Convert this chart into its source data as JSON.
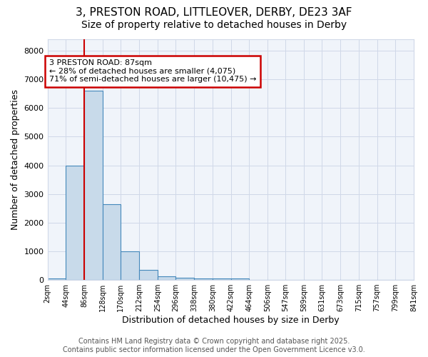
{
  "title_line1": "3, PRESTON ROAD, LITTLEOVER, DERBY, DE23 3AF",
  "title_line2": "Size of property relative to detached houses in Derby",
  "xlabel": "Distribution of detached houses by size in Derby",
  "ylabel": "Number of detached properties",
  "bin_edges": [
    2,
    44,
    86,
    128,
    170,
    212,
    254,
    296,
    338,
    380,
    422,
    464,
    506,
    547,
    589,
    631,
    673,
    715,
    757,
    799,
    841
  ],
  "bar_heights": [
    50,
    4000,
    6600,
    2650,
    1000,
    340,
    130,
    70,
    50,
    50,
    50,
    0,
    0,
    0,
    0,
    0,
    0,
    0,
    0,
    0
  ],
  "bar_color": "#c8daea",
  "bar_edge_color": "#4488bb",
  "bar_linewidth": 0.8,
  "red_line_x": 86,
  "red_line_color": "#cc0000",
  "annotation_line1": "3 PRESTON ROAD: 87sqm",
  "annotation_line2": "← 28% of detached houses are smaller (4,075)",
  "annotation_line3": "71% of semi-detached houses are larger (10,475) →",
  "annotation_box_color": "#ffffff",
  "annotation_box_edge": "#cc0000",
  "ylim": [
    0,
    8400
  ],
  "yticks": [
    0,
    1000,
    2000,
    3000,
    4000,
    5000,
    6000,
    7000,
    8000
  ],
  "tick_labels": [
    "2sqm",
    "44sqm",
    "86sqm",
    "128sqm",
    "170sqm",
    "212sqm",
    "254sqm",
    "296sqm",
    "338sqm",
    "380sqm",
    "422sqm",
    "464sqm",
    "506sqm",
    "547sqm",
    "589sqm",
    "631sqm",
    "673sqm",
    "715sqm",
    "757sqm",
    "799sqm",
    "841sqm"
  ],
  "footer_line1": "Contains HM Land Registry data © Crown copyright and database right 2025.",
  "footer_line2": "Contains public sector information licensed under the Open Government Licence v3.0.",
  "bg_color": "#ffffff",
  "plot_bg_color": "#f0f4fa",
  "grid_color": "#d0d8e8",
  "title_fontsize": 11,
  "subtitle_fontsize": 10,
  "axis_label_fontsize": 9,
  "tick_fontsize": 7,
  "footer_fontsize": 7,
  "annot_fontsize": 8
}
